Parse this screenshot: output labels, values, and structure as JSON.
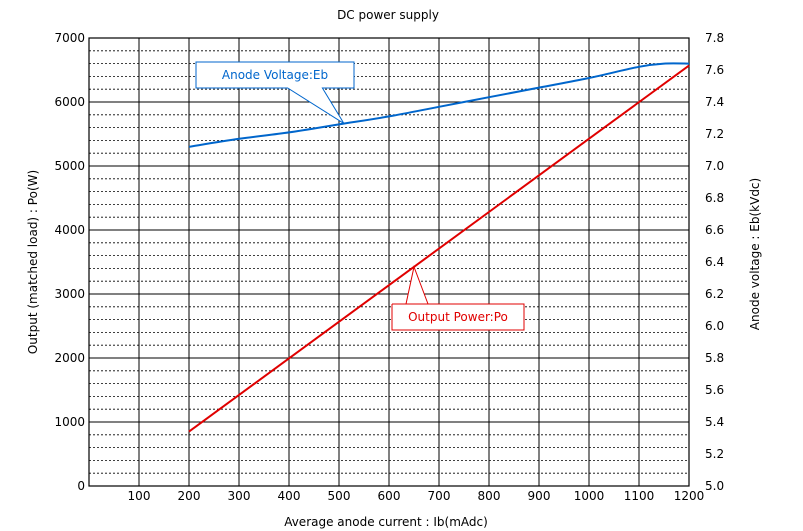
{
  "chart_data": {
    "type": "line",
    "title": "DC power supply",
    "xlabel": "Average anode current : Ib(mAdc)",
    "ylabel_left": "Output (matched load) : Po(W)",
    "ylabel_right": "Anode voltage : Eb(kVdc)",
    "xlim": [
      0,
      1200
    ],
    "ylim_left": [
      0,
      7000
    ],
    "ylim_right": [
      5.0,
      7.8
    ],
    "x_ticks": [
      "100",
      "200",
      "300",
      "400",
      "500",
      "600",
      "700",
      "800",
      "900",
      "1000",
      "1100",
      "1200"
    ],
    "x_origin_tick": "0",
    "y_left_ticks": [
      "0",
      "1000",
      "2000",
      "3000",
      "4000",
      "5000",
      "6000",
      "7000"
    ],
    "y_right_ticks": [
      "5.0",
      "5.2",
      "5.4",
      "5.6",
      "5.8",
      "6.0",
      "6.2",
      "6.4",
      "6.6",
      "6.8",
      "7.0",
      "7.2",
      "7.4",
      "7.6",
      "7.8"
    ],
    "grid": true,
    "series": [
      {
        "name": "Anode Voltage:Eb",
        "axis": "right",
        "color": "#0066cc",
        "x": [
          200,
          300,
          400,
          500,
          600,
          700,
          800,
          900,
          1000,
          1100,
          1150,
          1200
        ],
        "values": [
          7.12,
          7.17,
          7.21,
          7.26,
          7.31,
          7.37,
          7.43,
          7.49,
          7.55,
          7.62,
          7.64,
          7.64
        ]
      },
      {
        "name": "Output Power:Po",
        "axis": "left",
        "color": "#e00000",
        "x": [
          200,
          1200
        ],
        "values": [
          850,
          6570
        ]
      }
    ],
    "annotations": [
      {
        "text": "Anode Voltage:Eb",
        "series": 0,
        "color": "#0066cc",
        "points_to_x": 510
      },
      {
        "text": "Output Power:Po",
        "series": 1,
        "color": "#e00000",
        "points_to_x": 650
      }
    ]
  }
}
